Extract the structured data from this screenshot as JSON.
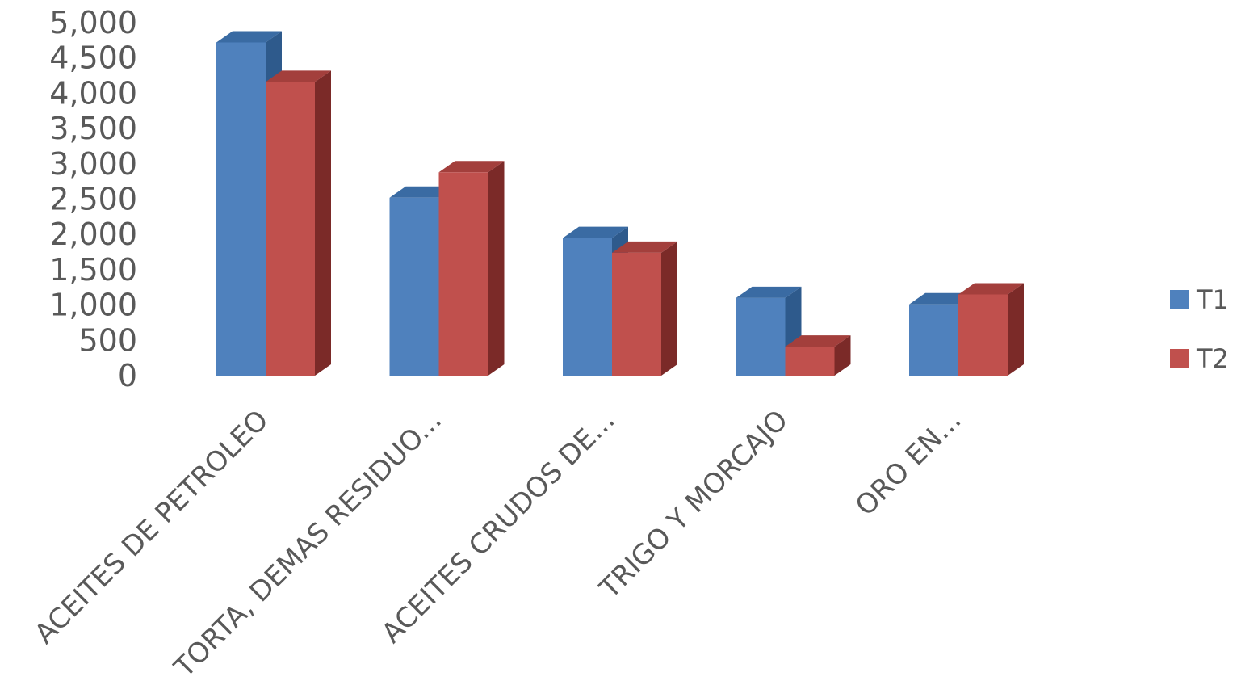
{
  "chart_data": {
    "type": "bar",
    "style": "3d-clustered-column",
    "categories": [
      "ACEITES DE PETROLEO",
      "TORTA, DEMAS RESIDUO...",
      "ACEITES CRUDOS DE...",
      "TRIGO Y MORCAJO",
      "ORO EN..."
    ],
    "series": [
      {
        "name": "T1",
        "values": [
          4720,
          2520,
          1950,
          1100,
          1010
        ],
        "color": "#4F81BD",
        "side_color": "#2E5A8C",
        "top_color": "#3A6BA3"
      },
      {
        "name": "T2",
        "values": [
          4160,
          2880,
          1740,
          410,
          1150
        ],
        "color": "#C0504D",
        "side_color": "#7B2A28",
        "top_color": "#A33F3C"
      }
    ],
    "yticks": [
      "0",
      "500",
      "1,000",
      "1,500",
      "2,000",
      "2,500",
      "3,000",
      "3,500",
      "4,000",
      "4,500",
      "5,000"
    ],
    "ylim": [
      0,
      5000
    ],
    "title": "",
    "xlabel": "",
    "ylabel": "",
    "legend_position": "right",
    "gridlines": false
  }
}
